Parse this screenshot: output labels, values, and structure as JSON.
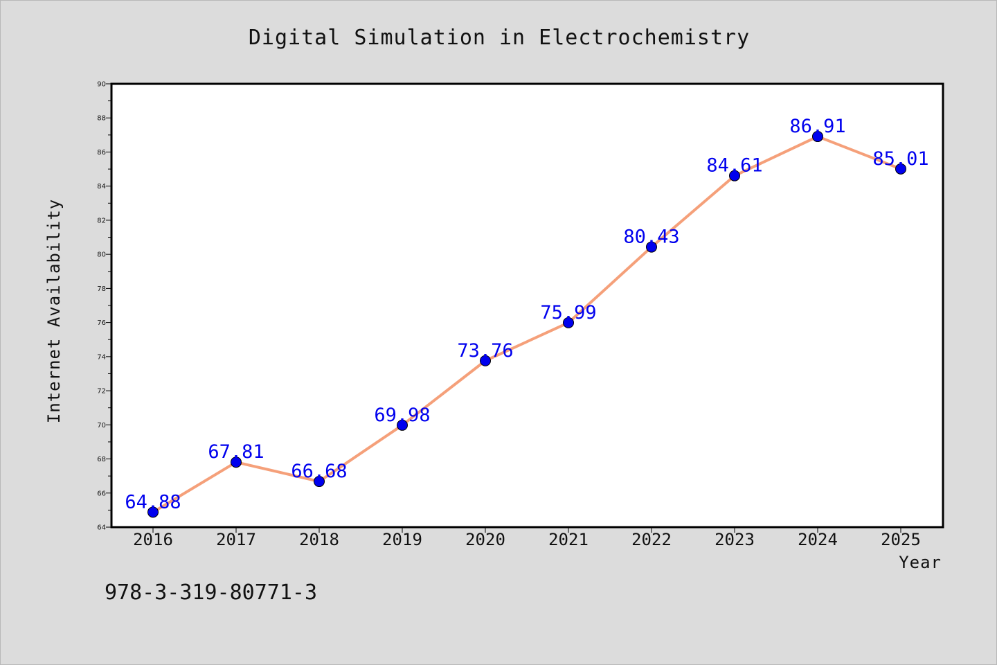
{
  "chart_data": {
    "type": "line",
    "title": "Digital Simulation in Electrochemistry",
    "xlabel": "Year",
    "ylabel": "Internet Availability",
    "x": [
      "2016",
      "2017",
      "2018",
      "2019",
      "2020",
      "2021",
      "2022",
      "2023",
      "2024",
      "2025"
    ],
    "series": [
      {
        "values": [
          64.88,
          67.81,
          66.68,
          69.98,
          73.76,
          75.99,
          80.43,
          84.61,
          86.91,
          85.01
        ],
        "labels": [
          "64.88",
          "67.81",
          "66.68",
          "69.98",
          "73.76",
          "75.99",
          "80.43",
          "84.61",
          "86.91",
          "85.01"
        ]
      }
    ],
    "ylim": [
      64,
      90
    ],
    "y_ticks": [
      "64",
      "66",
      "68",
      "70",
      "72",
      "74",
      "76",
      "78",
      "80",
      "82",
      "84",
      "86",
      "88",
      "90"
    ],
    "grid": false,
    "line_color": "#f5a07a",
    "marker_color": "#0000ee",
    "label_color": "#0000ee",
    "background_color": "#dcdcdc",
    "plot_background_color": "#ffffff"
  },
  "footer": {
    "text": "978-3-319-80771-3"
  }
}
